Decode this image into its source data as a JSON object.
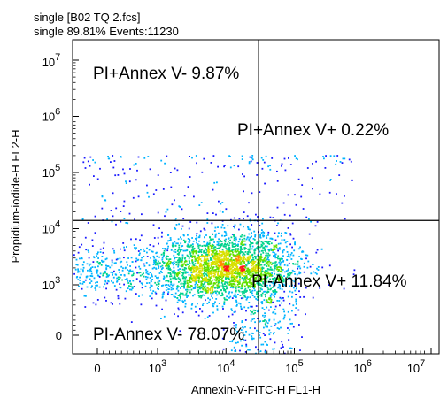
{
  "header": {
    "line1": "single [B02 TQ 2.fcs]",
    "line2": "single  89.81% Events:11230"
  },
  "chart_data": {
    "type": "scatter",
    "style": "density-dot-plot",
    "xlabel": "Annexin-V-FITC-H FL1-H",
    "ylabel": "Propidium-iodide-H FL2-H",
    "x_scale": "biexponential",
    "y_scale": "biexponential",
    "xlim": [
      -300,
      10000000
    ],
    "ylim": [
      -300,
      10000000
    ],
    "x_ticks": [
      {
        "value": 0,
        "base": "0",
        "exp": ""
      },
      {
        "value": 1000,
        "base": "10",
        "exp": "3"
      },
      {
        "value": 10000,
        "base": "10",
        "exp": "4"
      },
      {
        "value": 100000,
        "base": "10",
        "exp": "5"
      },
      {
        "value": 1000000,
        "base": "10",
        "exp": "6"
      },
      {
        "value": 10000000,
        "base": "10",
        "exp": "7"
      }
    ],
    "y_ticks": [
      {
        "value": 0,
        "base": "0",
        "exp": ""
      },
      {
        "value": 1000,
        "base": "10",
        "exp": "3"
      },
      {
        "value": 10000,
        "base": "10",
        "exp": "4"
      },
      {
        "value": 100000,
        "base": "10",
        "exp": "5"
      },
      {
        "value": 1000000,
        "base": "10",
        "exp": "6"
      },
      {
        "value": 10000000,
        "base": "10",
        "exp": "7"
      }
    ],
    "gates": {
      "x": 30000,
      "y": 14000
    },
    "quadrants": [
      {
        "label": "PI+Annex V- 9.87%",
        "position": "upper-left"
      },
      {
        "label": "PI+Annex V+ 0.22%",
        "position": "upper-right"
      },
      {
        "label": "PI-Annex V+ 11.84%",
        "position": "lower-right"
      },
      {
        "label": "PI-Annex V- 78.07%",
        "position": "lower-left"
      }
    ],
    "populations": [
      {
        "cx": 8000,
        "cy": 2000,
        "spread_x": 0.55,
        "spread_y": 0.3,
        "weight": 0.68
      },
      {
        "cx": 60,
        "cy": 1800,
        "spread_x": 0.6,
        "spread_y": 0.25,
        "weight": 0.12
      },
      {
        "cx": 20000,
        "cy": 3000,
        "spread_x": 0.35,
        "spread_y": 0.35,
        "weight": 0.12
      },
      {
        "cx": 40000,
        "cy": 500,
        "spread_x": 0.3,
        "spread_y": 0.6,
        "weight": 0.08
      }
    ],
    "density_colors": [
      "#1a1aff",
      "#00b4ff",
      "#00d28c",
      "#60e000",
      "#d8e000",
      "#ff8c00",
      "#ff1a1a"
    ],
    "grid": false
  }
}
